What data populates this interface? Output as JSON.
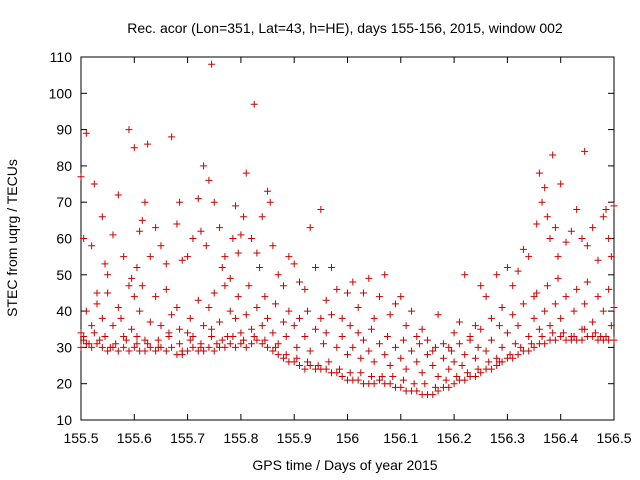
{
  "chart_data": {
    "type": "scatter",
    "title": "Rec. acor (Lon=351, Lat=43, h=HE), days 155-156, 2015, window 002",
    "xlabel": "GPS time / Days of year 2015",
    "ylabel": "STEC from uqrg / TECUs",
    "xlim": [
      155.5,
      156.5
    ],
    "ylim": [
      10,
      110
    ],
    "x_ticks": [
      155.5,
      155.6,
      155.7,
      155.8,
      155.9,
      156.0,
      156.1,
      156.2,
      156.3,
      156.4,
      156.5
    ],
    "x_tick_labels": [
      "155.5",
      "155.6",
      "155.7",
      "155.8",
      "155.9",
      "156",
      "156.1",
      "156.2",
      "156.3",
      "156.4",
      "156.5"
    ],
    "y_ticks": [
      10,
      20,
      30,
      40,
      50,
      60,
      70,
      80,
      90,
      100,
      110
    ],
    "y_tick_labels": [
      "10",
      "20",
      "30",
      "40",
      "50",
      "60",
      "70",
      "80",
      "90",
      "100",
      "110"
    ],
    "grid": false,
    "marker": "+",
    "colors": {
      "points": "#cc0000",
      "axes": "#000000"
    },
    "points": [
      [
        155.5,
        77
      ],
      [
        155.505,
        60
      ],
      [
        155.51,
        89
      ],
      [
        155.52,
        58
      ],
      [
        155.525,
        75
      ],
      [
        155.53,
        45
      ],
      [
        155.54,
        66
      ],
      [
        155.545,
        53
      ],
      [
        155.55,
        50
      ],
      [
        155.56,
        61
      ],
      [
        155.57,
        72
      ],
      [
        155.58,
        55
      ],
      [
        155.59,
        90
      ],
      [
        155.595,
        49
      ],
      [
        155.6,
        85
      ],
      [
        155.605,
        52
      ],
      [
        155.61,
        62
      ],
      [
        155.615,
        65
      ],
      [
        155.62,
        70
      ],
      [
        155.625,
        86
      ],
      [
        155.63,
        55
      ],
      [
        155.64,
        63
      ],
      [
        155.65,
        58
      ],
      [
        155.66,
        53
      ],
      [
        155.67,
        88
      ],
      [
        155.68,
        64
      ],
      [
        155.685,
        70
      ],
      [
        155.69,
        54
      ],
      [
        155.7,
        55
      ],
      [
        155.71,
        60
      ],
      [
        155.72,
        71
      ],
      [
        155.725,
        62
      ],
      [
        155.73,
        80
      ],
      [
        155.735,
        58
      ],
      [
        155.74,
        76
      ],
      [
        155.745,
        108
      ],
      [
        155.75,
        70
      ],
      [
        155.76,
        63
      ],
      [
        155.765,
        52
      ],
      [
        155.77,
        55
      ],
      [
        155.78,
        49
      ],
      [
        155.785,
        60
      ],
      [
        155.79,
        69
      ],
      [
        155.795,
        56
      ],
      [
        155.8,
        61
      ],
      [
        155.805,
        66
      ],
      [
        155.81,
        78
      ],
      [
        155.82,
        60
      ],
      [
        155.825,
        97
      ],
      [
        155.83,
        56
      ],
      [
        155.835,
        52
      ],
      [
        155.84,
        66
      ],
      [
        155.85,
        73
      ],
      [
        155.855,
        70
      ],
      [
        155.86,
        58
      ],
      [
        155.87,
        50
      ],
      [
        155.88,
        47
      ],
      [
        155.89,
        55
      ],
      [
        155.9,
        53
      ],
      [
        155.91,
        48
      ],
      [
        155.92,
        46
      ],
      [
        155.93,
        63
      ],
      [
        155.94,
        52
      ],
      [
        155.95,
        68
      ],
      [
        155.96,
        43
      ],
      [
        155.97,
        52
      ],
      [
        155.98,
        46
      ],
      [
        155.99,
        38
      ],
      [
        156.0,
        45
      ],
      [
        156.01,
        48
      ],
      [
        156.02,
        41
      ],
      [
        156.03,
        45
      ],
      [
        156.04,
        49
      ],
      [
        156.05,
        38
      ],
      [
        156.06,
        44
      ],
      [
        156.07,
        50
      ],
      [
        156.08,
        39
      ],
      [
        156.09,
        42
      ],
      [
        156.1,
        44
      ],
      [
        156.11,
        36
      ],
      [
        156.12,
        40
      ],
      [
        156.13,
        33
      ],
      [
        156.14,
        35
      ],
      [
        156.15,
        32
      ],
      [
        156.16,
        29
      ],
      [
        156.17,
        39
      ],
      [
        156.18,
        31
      ],
      [
        156.19,
        30
      ],
      [
        156.2,
        34
      ],
      [
        156.21,
        37
      ],
      [
        156.22,
        50
      ],
      [
        156.23,
        32
      ],
      [
        156.24,
        36
      ],
      [
        156.25,
        47
      ],
      [
        156.26,
        44
      ],
      [
        156.27,
        38
      ],
      [
        156.28,
        50
      ],
      [
        156.29,
        41
      ],
      [
        156.3,
        52
      ],
      [
        156.31,
        47
      ],
      [
        156.32,
        51
      ],
      [
        156.33,
        57
      ],
      [
        156.34,
        55
      ],
      [
        156.35,
        44
      ],
      [
        156.355,
        64
      ],
      [
        156.36,
        78
      ],
      [
        156.365,
        70
      ],
      [
        156.37,
        74
      ],
      [
        156.375,
        66
      ],
      [
        156.38,
        60
      ],
      [
        156.385,
        83
      ],
      [
        156.39,
        63
      ],
      [
        156.395,
        55
      ],
      [
        156.4,
        75
      ],
      [
        156.41,
        59
      ],
      [
        156.42,
        62
      ],
      [
        156.43,
        68
      ],
      [
        156.44,
        60
      ],
      [
        156.445,
        84
      ],
      [
        156.45,
        58
      ],
      [
        156.46,
        63
      ],
      [
        156.47,
        54
      ],
      [
        156.48,
        66
      ],
      [
        156.485,
        68
      ],
      [
        156.49,
        60
      ],
      [
        156.495,
        55
      ],
      [
        156.5,
        69
      ],
      [
        155.5,
        34
      ],
      [
        155.505,
        33
      ],
      [
        155.51,
        40
      ],
      [
        155.515,
        31
      ],
      [
        155.52,
        36
      ],
      [
        155.53,
        42
      ],
      [
        155.535,
        32
      ],
      [
        155.54,
        38
      ],
      [
        155.55,
        45
      ],
      [
        155.555,
        30
      ],
      [
        155.56,
        36
      ],
      [
        155.57,
        41
      ],
      [
        155.575,
        38
      ],
      [
        155.58,
        33
      ],
      [
        155.59,
        47
      ],
      [
        155.595,
        35
      ],
      [
        155.6,
        44
      ],
      [
        155.605,
        31
      ],
      [
        155.61,
        40
      ],
      [
        155.615,
        47
      ],
      [
        155.62,
        32
      ],
      [
        155.63,
        37
      ],
      [
        155.64,
        44
      ],
      [
        155.645,
        30
      ],
      [
        155.65,
        36
      ],
      [
        155.66,
        46
      ],
      [
        155.665,
        34
      ],
      [
        155.67,
        39
      ],
      [
        155.68,
        41
      ],
      [
        155.685,
        35
      ],
      [
        155.69,
        29
      ],
      [
        155.7,
        34
      ],
      [
        155.705,
        38
      ],
      [
        155.71,
        33
      ],
      [
        155.72,
        43
      ],
      [
        155.725,
        30
      ],
      [
        155.73,
        36
      ],
      [
        155.74,
        41
      ],
      [
        155.745,
        35
      ],
      [
        155.75,
        45
      ],
      [
        155.755,
        31
      ],
      [
        155.76,
        37
      ],
      [
        155.77,
        47
      ],
      [
        155.775,
        33
      ],
      [
        155.78,
        40
      ],
      [
        155.79,
        38
      ],
      [
        155.795,
        44
      ],
      [
        155.8,
        34
      ],
      [
        155.81,
        39
      ],
      [
        155.815,
        47
      ],
      [
        155.82,
        35
      ],
      [
        155.83,
        41
      ],
      [
        155.84,
        36
      ],
      [
        155.845,
        44
      ],
      [
        155.85,
        38
      ],
      [
        155.86,
        34
      ],
      [
        155.865,
        42
      ],
      [
        155.87,
        31
      ],
      [
        155.88,
        37
      ],
      [
        155.885,
        33
      ],
      [
        155.89,
        40
      ],
      [
        155.9,
        36
      ],
      [
        155.905,
        30
      ],
      [
        155.91,
        38
      ],
      [
        155.92,
        33
      ],
      [
        155.925,
        40
      ],
      [
        155.93,
        29
      ],
      [
        155.94,
        35
      ],
      [
        155.95,
        38
      ],
      [
        155.955,
        31
      ],
      [
        155.96,
        34
      ],
      [
        155.97,
        39
      ],
      [
        155.98,
        30
      ],
      [
        155.99,
        33
      ],
      [
        156.0,
        28
      ],
      [
        156.005,
        36
      ],
      [
        156.01,
        30
      ],
      [
        156.02,
        34
      ],
      [
        156.025,
        27
      ],
      [
        156.03,
        32
      ],
      [
        156.04,
        29
      ],
      [
        156.045,
        35
      ],
      [
        156.05,
        26
      ],
      [
        156.06,
        31
      ],
      [
        156.07,
        28
      ],
      [
        156.075,
        33
      ],
      [
        156.08,
        25
      ],
      [
        156.09,
        30
      ],
      [
        156.1,
        27
      ],
      [
        156.105,
        32
      ],
      [
        156.11,
        24
      ],
      [
        156.12,
        29
      ],
      [
        156.13,
        26
      ],
      [
        156.135,
        31
      ],
      [
        156.14,
        23
      ],
      [
        156.15,
        28
      ],
      [
        156.16,
        25
      ],
      [
        156.165,
        30
      ],
      [
        156.17,
        22
      ],
      [
        156.18,
        27
      ],
      [
        156.19,
        24
      ],
      [
        156.195,
        29
      ],
      [
        156.2,
        26
      ],
      [
        156.21,
        31
      ],
      [
        156.215,
        25
      ],
      [
        156.22,
        28
      ],
      [
        156.23,
        33
      ],
      [
        156.24,
        27
      ],
      [
        156.245,
        30
      ],
      [
        156.25,
        35
      ],
      [
        156.26,
        29
      ],
      [
        156.27,
        32
      ],
      [
        156.28,
        27
      ],
      [
        156.285,
        36
      ],
      [
        156.29,
        30
      ],
      [
        156.3,
        34
      ],
      [
        156.31,
        39
      ],
      [
        156.315,
        31
      ],
      [
        156.32,
        36
      ],
      [
        156.33,
        42
      ],
      [
        156.34,
        33
      ],
      [
        156.35,
        38
      ],
      [
        156.355,
        45
      ],
      [
        156.36,
        35
      ],
      [
        156.37,
        40
      ],
      [
        156.375,
        47
      ],
      [
        156.38,
        36
      ],
      [
        156.39,
        42
      ],
      [
        156.395,
        49
      ],
      [
        156.4,
        38
      ],
      [
        156.41,
        44
      ],
      [
        156.42,
        33
      ],
      [
        156.425,
        40
      ],
      [
        156.43,
        46
      ],
      [
        156.44,
        35
      ],
      [
        156.445,
        42
      ],
      [
        156.45,
        48
      ],
      [
        156.46,
        37
      ],
      [
        156.47,
        44
      ],
      [
        156.475,
        33
      ],
      [
        156.48,
        40
      ],
      [
        156.49,
        46
      ],
      [
        156.495,
        36
      ],
      [
        156.5,
        41
      ],
      [
        155.5,
        30
      ],
      [
        155.51,
        31
      ],
      [
        155.52,
        30
      ],
      [
        155.53,
        31
      ],
      [
        155.54,
        30
      ],
      [
        155.55,
        29
      ],
      [
        155.56,
        30
      ],
      [
        155.57,
        29
      ],
      [
        155.58,
        30
      ],
      [
        155.59,
        29
      ],
      [
        155.6,
        30
      ],
      [
        155.61,
        29
      ],
      [
        155.62,
        29
      ],
      [
        155.63,
        30
      ],
      [
        155.64,
        29
      ],
      [
        155.65,
        30
      ],
      [
        155.66,
        29
      ],
      [
        155.67,
        30
      ],
      [
        155.68,
        28
      ],
      [
        155.69,
        28
      ],
      [
        155.7,
        29
      ],
      [
        155.71,
        30
      ],
      [
        155.72,
        29
      ],
      [
        155.73,
        29
      ],
      [
        155.74,
        30
      ],
      [
        155.75,
        29
      ],
      [
        155.76,
        30
      ],
      [
        155.77,
        30
      ],
      [
        155.78,
        31
      ],
      [
        155.79,
        30
      ],
      [
        155.8,
        31
      ],
      [
        155.81,
        30
      ],
      [
        155.82,
        31
      ],
      [
        155.83,
        32
      ],
      [
        155.84,
        31
      ],
      [
        155.85,
        30
      ],
      [
        155.86,
        29
      ],
      [
        155.87,
        28
      ],
      [
        155.88,
        27
      ],
      [
        155.89,
        26
      ],
      [
        155.9,
        26
      ],
      [
        155.91,
        25
      ],
      [
        155.92,
        24
      ],
      [
        155.93,
        25
      ],
      [
        155.94,
        24
      ],
      [
        155.95,
        24
      ],
      [
        155.96,
        24
      ],
      [
        155.97,
        23
      ],
      [
        155.98,
        23
      ],
      [
        155.99,
        22
      ],
      [
        156.0,
        21
      ],
      [
        156.01,
        21
      ],
      [
        156.02,
        21
      ],
      [
        156.03,
        20
      ],
      [
        156.04,
        20
      ],
      [
        156.05,
        20
      ],
      [
        156.06,
        21
      ],
      [
        156.07,
        20
      ],
      [
        156.08,
        20
      ],
      [
        156.09,
        19
      ],
      [
        156.1,
        19
      ],
      [
        156.11,
        18
      ],
      [
        156.12,
        18
      ],
      [
        156.13,
        18
      ],
      [
        156.14,
        17
      ],
      [
        156.15,
        17
      ],
      [
        156.16,
        17
      ],
      [
        156.17,
        18
      ],
      [
        156.18,
        19
      ],
      [
        156.19,
        19
      ],
      [
        156.2,
        20
      ],
      [
        156.21,
        21
      ],
      [
        156.22,
        21
      ],
      [
        156.23,
        22
      ],
      [
        156.24,
        22
      ],
      [
        156.25,
        23
      ],
      [
        156.26,
        24
      ],
      [
        156.27,
        24
      ],
      [
        156.28,
        25
      ],
      [
        156.29,
        26
      ],
      [
        156.3,
        27
      ],
      [
        156.31,
        27
      ],
      [
        156.32,
        28
      ],
      [
        156.33,
        29
      ],
      [
        156.34,
        29
      ],
      [
        156.35,
        30
      ],
      [
        156.36,
        31
      ],
      [
        156.37,
        31
      ],
      [
        156.38,
        32
      ],
      [
        156.39,
        32
      ],
      [
        156.4,
        33
      ],
      [
        156.41,
        32
      ],
      [
        156.42,
        32
      ],
      [
        156.43,
        32
      ],
      [
        156.44,
        32
      ],
      [
        156.45,
        33
      ],
      [
        156.46,
        33
      ],
      [
        156.47,
        32
      ],
      [
        156.48,
        32
      ],
      [
        156.49,
        32
      ],
      [
        156.5,
        32
      ],
      [
        155.505,
        32
      ],
      [
        155.525,
        34
      ],
      [
        155.545,
        33
      ],
      [
        155.565,
        31
      ],
      [
        155.585,
        32
      ],
      [
        155.605,
        33
      ],
      [
        155.625,
        31
      ],
      [
        155.645,
        32
      ],
      [
        155.665,
        33
      ],
      [
        155.685,
        31
      ],
      [
        155.705,
        32
      ],
      [
        155.725,
        31
      ],
      [
        155.745,
        33
      ],
      [
        155.765,
        32
      ],
      [
        155.785,
        33
      ],
      [
        155.805,
        32
      ],
      [
        155.825,
        33
      ],
      [
        155.845,
        32
      ],
      [
        155.865,
        30
      ],
      [
        155.885,
        28
      ],
      [
        155.905,
        27
      ],
      [
        155.925,
        26
      ],
      [
        155.945,
        25
      ],
      [
        155.965,
        26
      ],
      [
        155.985,
        24
      ],
      [
        156.005,
        23
      ],
      [
        156.025,
        23
      ],
      [
        156.045,
        22
      ],
      [
        156.065,
        22
      ],
      [
        156.085,
        22
      ],
      [
        156.105,
        21
      ],
      [
        156.125,
        20
      ],
      [
        156.145,
        20
      ],
      [
        156.165,
        19
      ],
      [
        156.185,
        21
      ],
      [
        156.205,
        22
      ],
      [
        156.225,
        23
      ],
      [
        156.245,
        24
      ],
      [
        156.265,
        26
      ],
      [
        156.285,
        26
      ],
      [
        156.305,
        28
      ],
      [
        156.325,
        30
      ],
      [
        156.345,
        31
      ],
      [
        156.365,
        33
      ],
      [
        156.385,
        34
      ],
      [
        156.405,
        34
      ],
      [
        156.425,
        33
      ],
      [
        156.445,
        35
      ],
      [
        156.465,
        34
      ],
      [
        156.485,
        33
      ]
    ]
  }
}
